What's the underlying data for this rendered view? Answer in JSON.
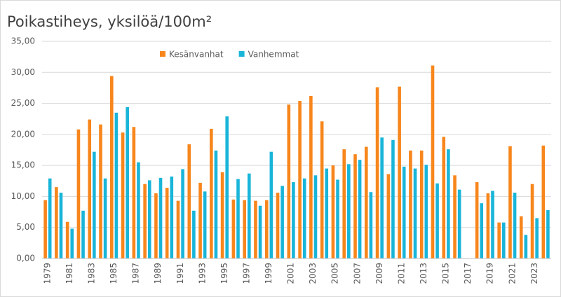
{
  "chart_data": {
    "type": "bar",
    "title": "Poikastiheys, yksilöä/100m²",
    "categories": [
      "1979",
      null,
      "1981",
      null,
      "1983",
      null,
      "1985",
      null,
      "1987",
      null,
      "1989",
      null,
      "1991",
      null,
      "1993",
      null,
      "1995",
      null,
      "1997",
      null,
      "1999",
      null,
      "2001",
      null,
      "2003",
      null,
      "2005",
      null,
      "2007",
      null,
      "2009",
      null,
      "2011",
      null,
      "2013",
      null,
      "2015",
      null,
      "2017",
      null,
      "2019",
      null,
      "2021",
      null,
      "2023",
      null
    ],
    "series": [
      {
        "name": "Kesänvanhat",
        "color": "#f7861c",
        "values": [
          9.4,
          11.5,
          5.9,
          20.8,
          22.4,
          21.6,
          29.4,
          20.3,
          21.2,
          12.0,
          10.5,
          11.4,
          9.3,
          18.4,
          12.2,
          20.9,
          13.9,
          9.5,
          9.4,
          9.3,
          9.4,
          10.6,
          24.8,
          25.4,
          26.2,
          22.1,
          15.0,
          17.6,
          16.8,
          18.0,
          27.6,
          13.6,
          27.7,
          17.4,
          17.4,
          31.1,
          19.6,
          13.4,
          null,
          12.3,
          10.5,
          5.8,
          18.1,
          6.8,
          12.0,
          18.2
        ]
      },
      {
        "name": "Vanhemmat",
        "color": "#19b5d9",
        "values": [
          12.9,
          10.6,
          4.8,
          7.7,
          17.2,
          12.9,
          23.5,
          24.4,
          15.5,
          12.6,
          13.0,
          13.2,
          14.4,
          7.7,
          10.8,
          17.4,
          22.9,
          12.8,
          13.7,
          8.5,
          17.2,
          11.7,
          12.3,
          12.9,
          13.4,
          14.5,
          12.7,
          15.2,
          15.9,
          10.7,
          19.5,
          19.1,
          14.8,
          14.5,
          15.1,
          12.1,
          17.6,
          11.1,
          null,
          8.9,
          10.9,
          5.8,
          10.6,
          3.8,
          6.5,
          7.8
        ]
      }
    ],
    "ylim": [
      0,
      35
    ],
    "yticks": [
      {
        "value": 0,
        "label": "0,00"
      },
      {
        "value": 5,
        "label": "5,00"
      },
      {
        "value": 10,
        "label": "10,00"
      },
      {
        "value": 15,
        "label": "15,00"
      },
      {
        "value": 20,
        "label": "20,00"
      },
      {
        "value": 25,
        "label": "25,00"
      },
      {
        "value": 30,
        "label": "30,00"
      },
      {
        "value": 35,
        "label": "35,00"
      }
    ],
    "grid": true,
    "legend": "top"
  }
}
